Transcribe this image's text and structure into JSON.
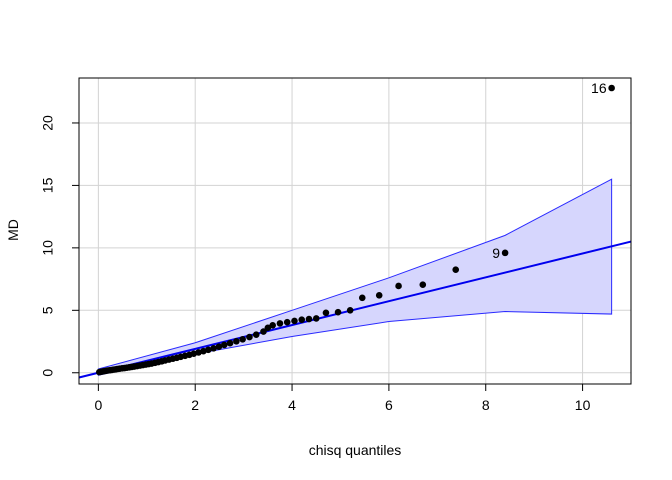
{
  "chart_data": {
    "type": "scatter",
    "title": "",
    "xlabel": "chisq quantiles",
    "ylabel": "MD",
    "xlim": [
      -0.4,
      11.0
    ],
    "ylim": [
      -0.9,
      23.6
    ],
    "xticks": [
      0,
      2,
      4,
      6,
      8,
      10
    ],
    "yticks": [
      0,
      5,
      10,
      15,
      20
    ],
    "grid": true,
    "points": [
      {
        "x": 0.02,
        "y": 0.05
      },
      {
        "x": 0.05,
        "y": 0.08
      },
      {
        "x": 0.08,
        "y": 0.1
      },
      {
        "x": 0.11,
        "y": 0.12
      },
      {
        "x": 0.15,
        "y": 0.15
      },
      {
        "x": 0.19,
        "y": 0.18
      },
      {
        "x": 0.23,
        "y": 0.2
      },
      {
        "x": 0.27,
        "y": 0.22
      },
      {
        "x": 0.31,
        "y": 0.25
      },
      {
        "x": 0.35,
        "y": 0.27
      },
      {
        "x": 0.39,
        "y": 0.3
      },
      {
        "x": 0.44,
        "y": 0.33
      },
      {
        "x": 0.49,
        "y": 0.36
      },
      {
        "x": 0.54,
        "y": 0.38
      },
      {
        "x": 0.59,
        "y": 0.41
      },
      {
        "x": 0.64,
        "y": 0.44
      },
      {
        "x": 0.69,
        "y": 0.47
      },
      {
        "x": 0.74,
        "y": 0.5
      },
      {
        "x": 0.8,
        "y": 0.54
      },
      {
        "x": 0.86,
        "y": 0.58
      },
      {
        "x": 0.92,
        "y": 0.62
      },
      {
        "x": 0.98,
        "y": 0.66
      },
      {
        "x": 1.04,
        "y": 0.7
      },
      {
        "x": 1.1,
        "y": 0.74
      },
      {
        "x": 1.17,
        "y": 0.8
      },
      {
        "x": 1.24,
        "y": 0.86
      },
      {
        "x": 1.31,
        "y": 0.92
      },
      {
        "x": 1.38,
        "y": 0.99
      },
      {
        "x": 1.46,
        "y": 1.06
      },
      {
        "x": 1.54,
        "y": 1.13
      },
      {
        "x": 1.62,
        "y": 1.2
      },
      {
        "x": 1.7,
        "y": 1.28
      },
      {
        "x": 1.79,
        "y": 1.36
      },
      {
        "x": 1.88,
        "y": 1.44
      },
      {
        "x": 1.97,
        "y": 1.53
      },
      {
        "x": 2.07,
        "y": 1.63
      },
      {
        "x": 2.17,
        "y": 1.73
      },
      {
        "x": 2.27,
        "y": 1.84
      },
      {
        "x": 2.38,
        "y": 1.96
      },
      {
        "x": 2.49,
        "y": 2.09
      },
      {
        "x": 2.6,
        "y": 2.23
      },
      {
        "x": 2.72,
        "y": 2.37
      },
      {
        "x": 2.85,
        "y": 2.52
      },
      {
        "x": 2.98,
        "y": 2.68
      },
      {
        "x": 3.12,
        "y": 2.86
      },
      {
        "x": 3.26,
        "y": 3.05
      },
      {
        "x": 3.41,
        "y": 3.3
      },
      {
        "x": 3.5,
        "y": 3.6
      },
      {
        "x": 3.6,
        "y": 3.8
      },
      {
        "x": 3.75,
        "y": 3.95
      },
      {
        "x": 3.9,
        "y": 4.05
      },
      {
        "x": 4.05,
        "y": 4.15
      },
      {
        "x": 4.2,
        "y": 4.25
      },
      {
        "x": 4.35,
        "y": 4.3
      },
      {
        "x": 4.5,
        "y": 4.35
      },
      {
        "x": 4.7,
        "y": 4.8
      },
      {
        "x": 4.95,
        "y": 4.85
      },
      {
        "x": 5.2,
        "y": 5.0
      },
      {
        "x": 5.45,
        "y": 6.0
      },
      {
        "x": 5.8,
        "y": 6.2
      },
      {
        "x": 6.2,
        "y": 6.95
      },
      {
        "x": 6.7,
        "y": 7.05
      },
      {
        "x": 7.38,
        "y": 8.25
      },
      {
        "x": 8.4,
        "y": 9.6
      },
      {
        "x": 10.6,
        "y": 22.8
      }
    ],
    "point_labels": [
      {
        "text": "9",
        "x": 8.4,
        "y": 9.6
      },
      {
        "text": "16",
        "x": 10.6,
        "y": 22.8
      }
    ],
    "reference_line": {
      "intercept": 0.0,
      "slope": 0.955
    },
    "confidence_band": {
      "x": [
        0.0,
        2.0,
        4.0,
        6.0,
        8.4,
        10.6
      ],
      "upper": [
        0.3,
        2.4,
        5.0,
        7.6,
        11.0,
        15.5
      ],
      "lower": [
        -0.2,
        1.5,
        2.9,
        4.1,
        4.9,
        4.7
      ]
    },
    "colors": {
      "points": "#000000",
      "line": "#0000ee",
      "band_fill": "#d6d6fd",
      "band_stroke": "#2a2aff",
      "grid": "#d3d3d3"
    }
  }
}
